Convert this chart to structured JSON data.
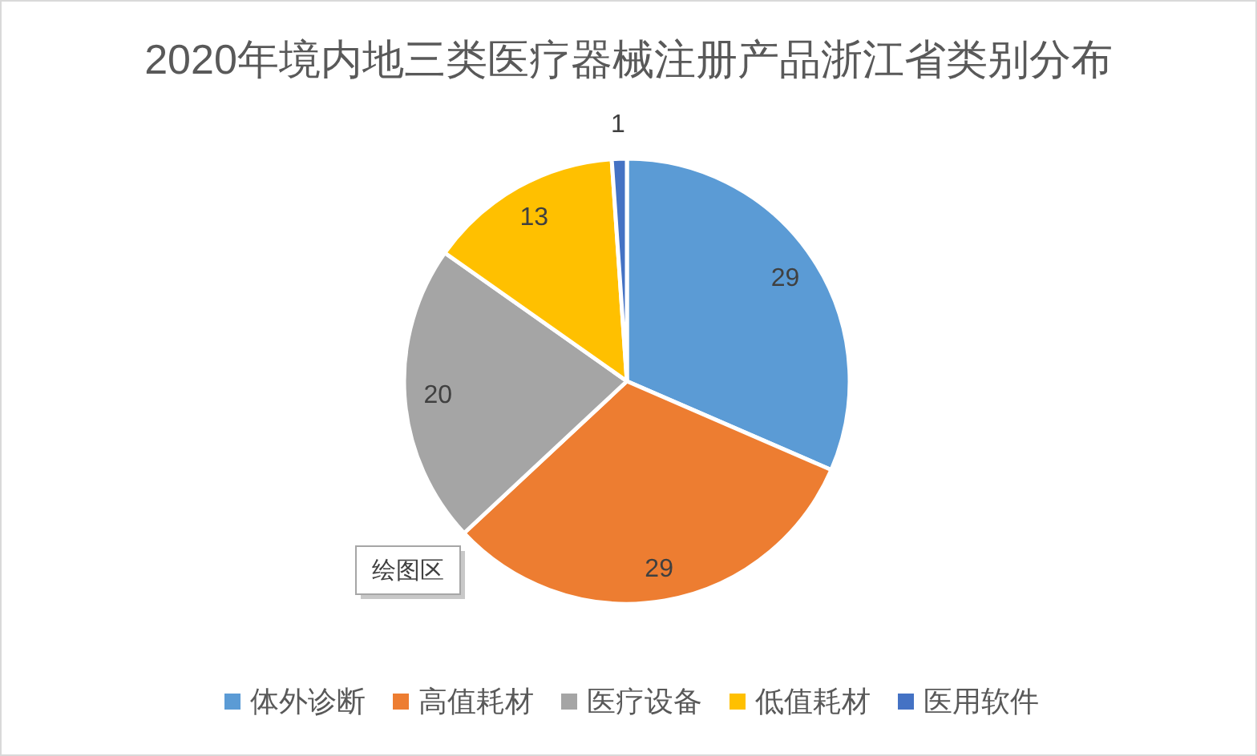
{
  "chart_data": {
    "type": "pie",
    "title": "2020年境内地三类医疗器械注册产品浙江省类别分布",
    "categories": [
      "体外诊断",
      "高值耗材",
      "医疗设备",
      "低值耗材",
      "医用软件"
    ],
    "values": [
      29,
      29,
      20,
      13,
      1
    ],
    "colors": [
      "#5b9bd5",
      "#ed7d31",
      "#a5a5a5",
      "#ffc000",
      "#4472c4"
    ],
    "data_labels": true,
    "legend": "bottom",
    "annotations": [
      "绘图区"
    ]
  }
}
